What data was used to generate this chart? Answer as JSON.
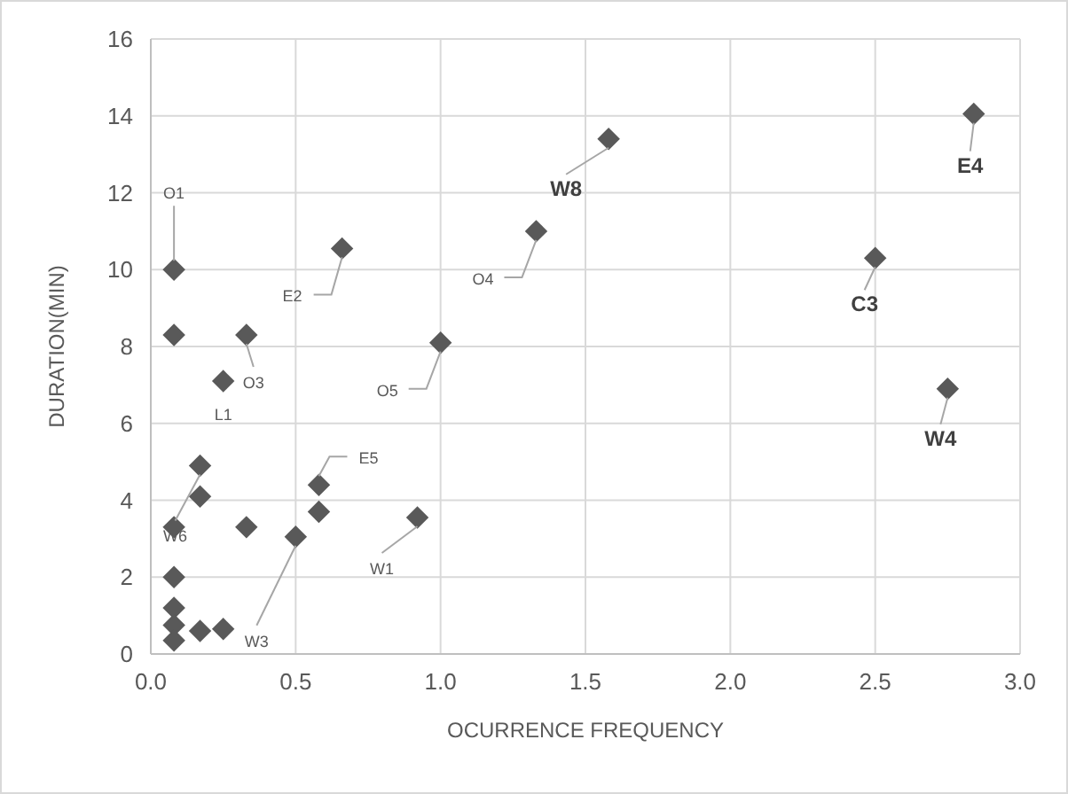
{
  "chart_data": {
    "type": "scatter",
    "xlabel": "OCURRENCE FREQUENCY",
    "ylabel": "DURATION(MIN)",
    "x": [
      0.08,
      0.08,
      0.25,
      0.33,
      0.66,
      1.0,
      1.33,
      1.58,
      2.84,
      2.5,
      2.75,
      0.17,
      0.17,
      0.08,
      0.33,
      0.5,
      0.58,
      0.58,
      0.92,
      0.08,
      0.08,
      0.08,
      0.08,
      0.17,
      0.25
    ],
    "series": [
      {
        "color": "#595959",
        "values": [
          10.0,
          8.3,
          7.1,
          8.3,
          10.55,
          8.1,
          11.0,
          13.4,
          14.05,
          10.3,
          6.9,
          4.9,
          4.1,
          3.3,
          3.3,
          3.05,
          4.4,
          3.7,
          3.55,
          2.0,
          1.2,
          0.75,
          0.35,
          0.6,
          0.65
        ]
      }
    ],
    "xlim": [
      0,
      3
    ],
    "xticks": [
      {
        "value": 0,
        "label": "0.0"
      },
      {
        "value": 0.5,
        "label": "0.5"
      },
      {
        "value": 1,
        "label": "1.0"
      },
      {
        "value": 1.5,
        "label": "1.5"
      },
      {
        "value": 2,
        "label": "2.0"
      },
      {
        "value": 2.5,
        "label": "2.5"
      },
      {
        "value": 3,
        "label": "3.0"
      }
    ],
    "ylim": [
      0,
      16
    ],
    "yticks": [
      0,
      2,
      4,
      6,
      8,
      10,
      12,
      14,
      16
    ],
    "grid": true,
    "marker": "diamond",
    "annotations": [
      {
        "text": "O1",
        "x": 0.08,
        "y": 10.0
      },
      {
        "text": "O3",
        "x": 0.33,
        "y": 8.3
      },
      {
        "text": "L1",
        "x": 0.25,
        "y": 7.1
      },
      {
        "text": "E2",
        "x": 0.66,
        "y": 10.55
      },
      {
        "text": "O5",
        "x": 1.0,
        "y": 8.1
      },
      {
        "text": "O4",
        "x": 1.33,
        "y": 11.0
      },
      {
        "text": "W8",
        "x": 1.58,
        "y": 13.4
      },
      {
        "text": "E4",
        "x": 2.84,
        "y": 14.05
      },
      {
        "text": "C3",
        "x": 2.5,
        "y": 10.3
      },
      {
        "text": "W4",
        "x": 2.75,
        "y": 6.9
      },
      {
        "text": "W6",
        "x": 0.17,
        "y": 4.9
      },
      {
        "text": "E5",
        "x": 0.58,
        "y": 4.4
      },
      {
        "text": "W3",
        "x": 0.5,
        "y": 3.05
      },
      {
        "text": "W1",
        "x": 0.92,
        "y": 3.55
      }
    ]
  }
}
